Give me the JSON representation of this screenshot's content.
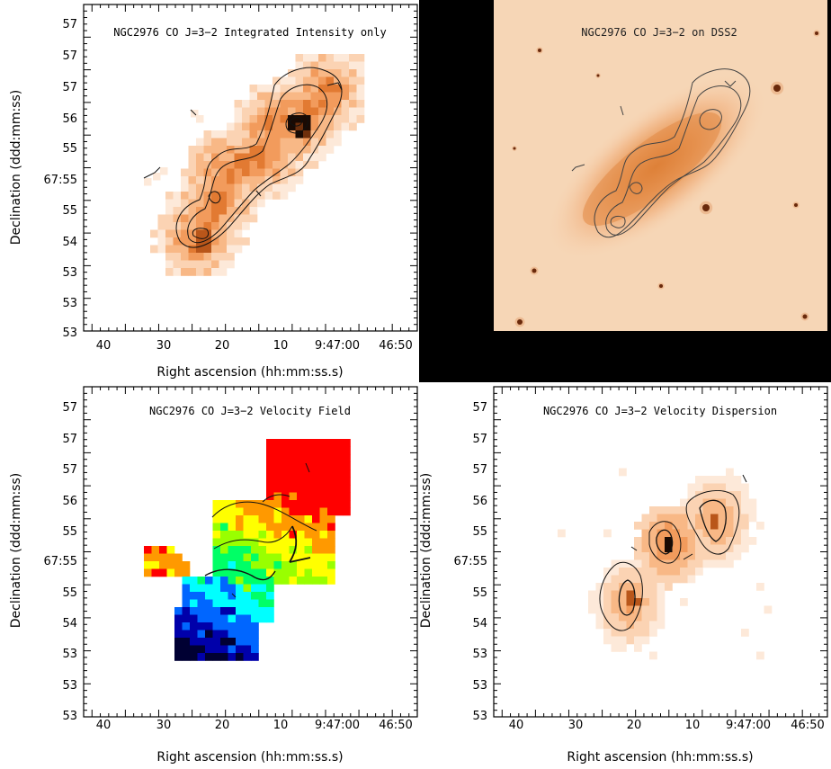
{
  "panels": [
    {
      "id": "integrated",
      "title": "NGC2976 CO J=3−2 Integrated Intensity only",
      "xlabel": "Right ascension (hh:mm:ss.s)",
      "ylabel": "Declination (ddd:mm:ss)",
      "xticks": [
        "40",
        "30",
        "20",
        "10",
        "9:47:00",
        "46:50"
      ],
      "yticks": [
        "57",
        "57",
        "57",
        "56",
        "55",
        "67:55",
        "55",
        "54",
        "53",
        "53",
        "53"
      ]
    },
    {
      "id": "dss",
      "title": "NGC2976 CO J=3−2 on DSS2"
    },
    {
      "id": "velocity",
      "title": "NGC2976 CO J=3−2 Velocity Field",
      "xlabel": "Right ascension (hh:mm:ss.s)",
      "ylabel": "Declination (ddd:mm:ss)",
      "xticks": [
        "40",
        "30",
        "20",
        "10",
        "9:47:00",
        "46:50"
      ],
      "yticks": [
        "57",
        "57",
        "57",
        "56",
        "55",
        "67:55",
        "55",
        "54",
        "53",
        "53",
        "53"
      ]
    },
    {
      "id": "dispersion",
      "title": "NGC2976 CO J=3−2 Velocity Dispersion",
      "xlabel": "Right ascension (hh:mm:ss.s)",
      "ylabel": "Declination (ddd:mm:ss)",
      "xticks": [
        "40",
        "30",
        "20",
        "10",
        "9:47:00",
        "46:50"
      ],
      "yticks": [
        "57",
        "57",
        "57",
        "56",
        "55",
        "67:55",
        "55",
        "54",
        "53",
        "53",
        "53"
      ]
    }
  ],
  "colors": {
    "orange_map": [
      "#fde9d9",
      "#fbd3b3",
      "#f8b886",
      "#f29b5c",
      "#e27a32",
      "#b9561a",
      "#6e2f0c",
      "#1a0a03"
    ],
    "velocity_map": [
      "#000033",
      "#0000aa",
      "#0066ff",
      "#00ffff",
      "#00ff66",
      "#99ff00",
      "#ffff00",
      "#ff9900",
      "#ff0000"
    ],
    "dss_background": "#f6d6b6",
    "frame_black": "#000000"
  }
}
